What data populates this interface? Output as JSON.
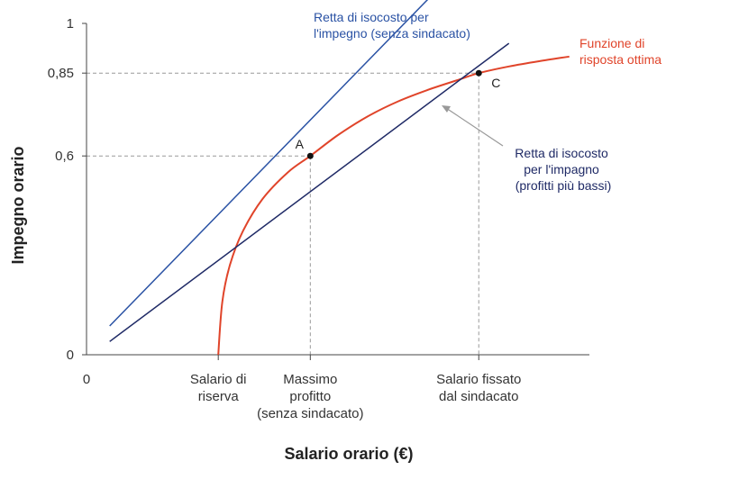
{
  "chart_data": {
    "type": "line",
    "title": "",
    "xlabel": "Salario orario (€)",
    "ylabel": "Impegno orario",
    "xlim": [
      0,
      1
    ],
    "ylim": [
      0,
      1
    ],
    "y_ticks": [
      {
        "value": 0,
        "label": "0"
      },
      {
        "value": 0.6,
        "label": "0,6"
      },
      {
        "value": 0.85,
        "label": "0,85"
      },
      {
        "value": 1,
        "label": "1"
      }
    ],
    "x_ticks": [
      {
        "value": 0,
        "label": "0",
        "lines": [
          "0"
        ]
      },
      {
        "value": 0.262,
        "label": "Salario di riserva",
        "lines": [
          "Salario di",
          "riserva"
        ]
      },
      {
        "value": 0.445,
        "label": "Massimo profitto (senza sindacato)",
        "lines": [
          "Massimo",
          "profitto",
          "(senza sindacato)"
        ]
      },
      {
        "value": 0.78,
        "label": "Salario fissato dal sindacato",
        "lines": [
          "Salario fissato",
          "dal sindacato"
        ]
      }
    ],
    "series": [
      {
        "name": "Funzione di risposta ottima",
        "label_lines": [
          "Funzione di",
          "risposta ottima"
        ],
        "color": "#e0442a",
        "shape": "curve",
        "x": [
          0.262,
          0.27,
          0.285,
          0.31,
          0.35,
          0.4,
          0.445,
          0.5,
          0.56,
          0.62,
          0.68,
          0.74,
          0.78,
          0.84,
          0.9,
          0.96
        ],
        "y": [
          0,
          0.16,
          0.27,
          0.37,
          0.47,
          0.55,
          0.6,
          0.663,
          0.72,
          0.765,
          0.8,
          0.83,
          0.85,
          0.87,
          0.886,
          0.9
        ]
      },
      {
        "name": "Retta di isocosto per l'impegno (senza sindacato)",
        "label_lines": [
          "Retta di isocosto per",
          "l'impegno (senza sindacato)"
        ],
        "color": "#2a52a4",
        "shape": "line",
        "x": [
          0.046,
          0.679
        ],
        "y": [
          0.087,
          1.073
        ]
      },
      {
        "name": "Retta di isocosto per l'impagno (profitti più bassi)",
        "label_lines": [
          "Retta di isocosto",
          "per l'impagno",
          "(profitti più bassi)"
        ],
        "color": "#1f2a66",
        "shape": "line",
        "x": [
          0.046,
          0.84
        ],
        "y": [
          0.04,
          0.94
        ]
      }
    ],
    "points": [
      {
        "label": "A",
        "x": 0.445,
        "y": 0.6
      },
      {
        "label": "C",
        "x": 0.78,
        "y": 0.85
      }
    ],
    "grid": false,
    "legend": "none"
  }
}
